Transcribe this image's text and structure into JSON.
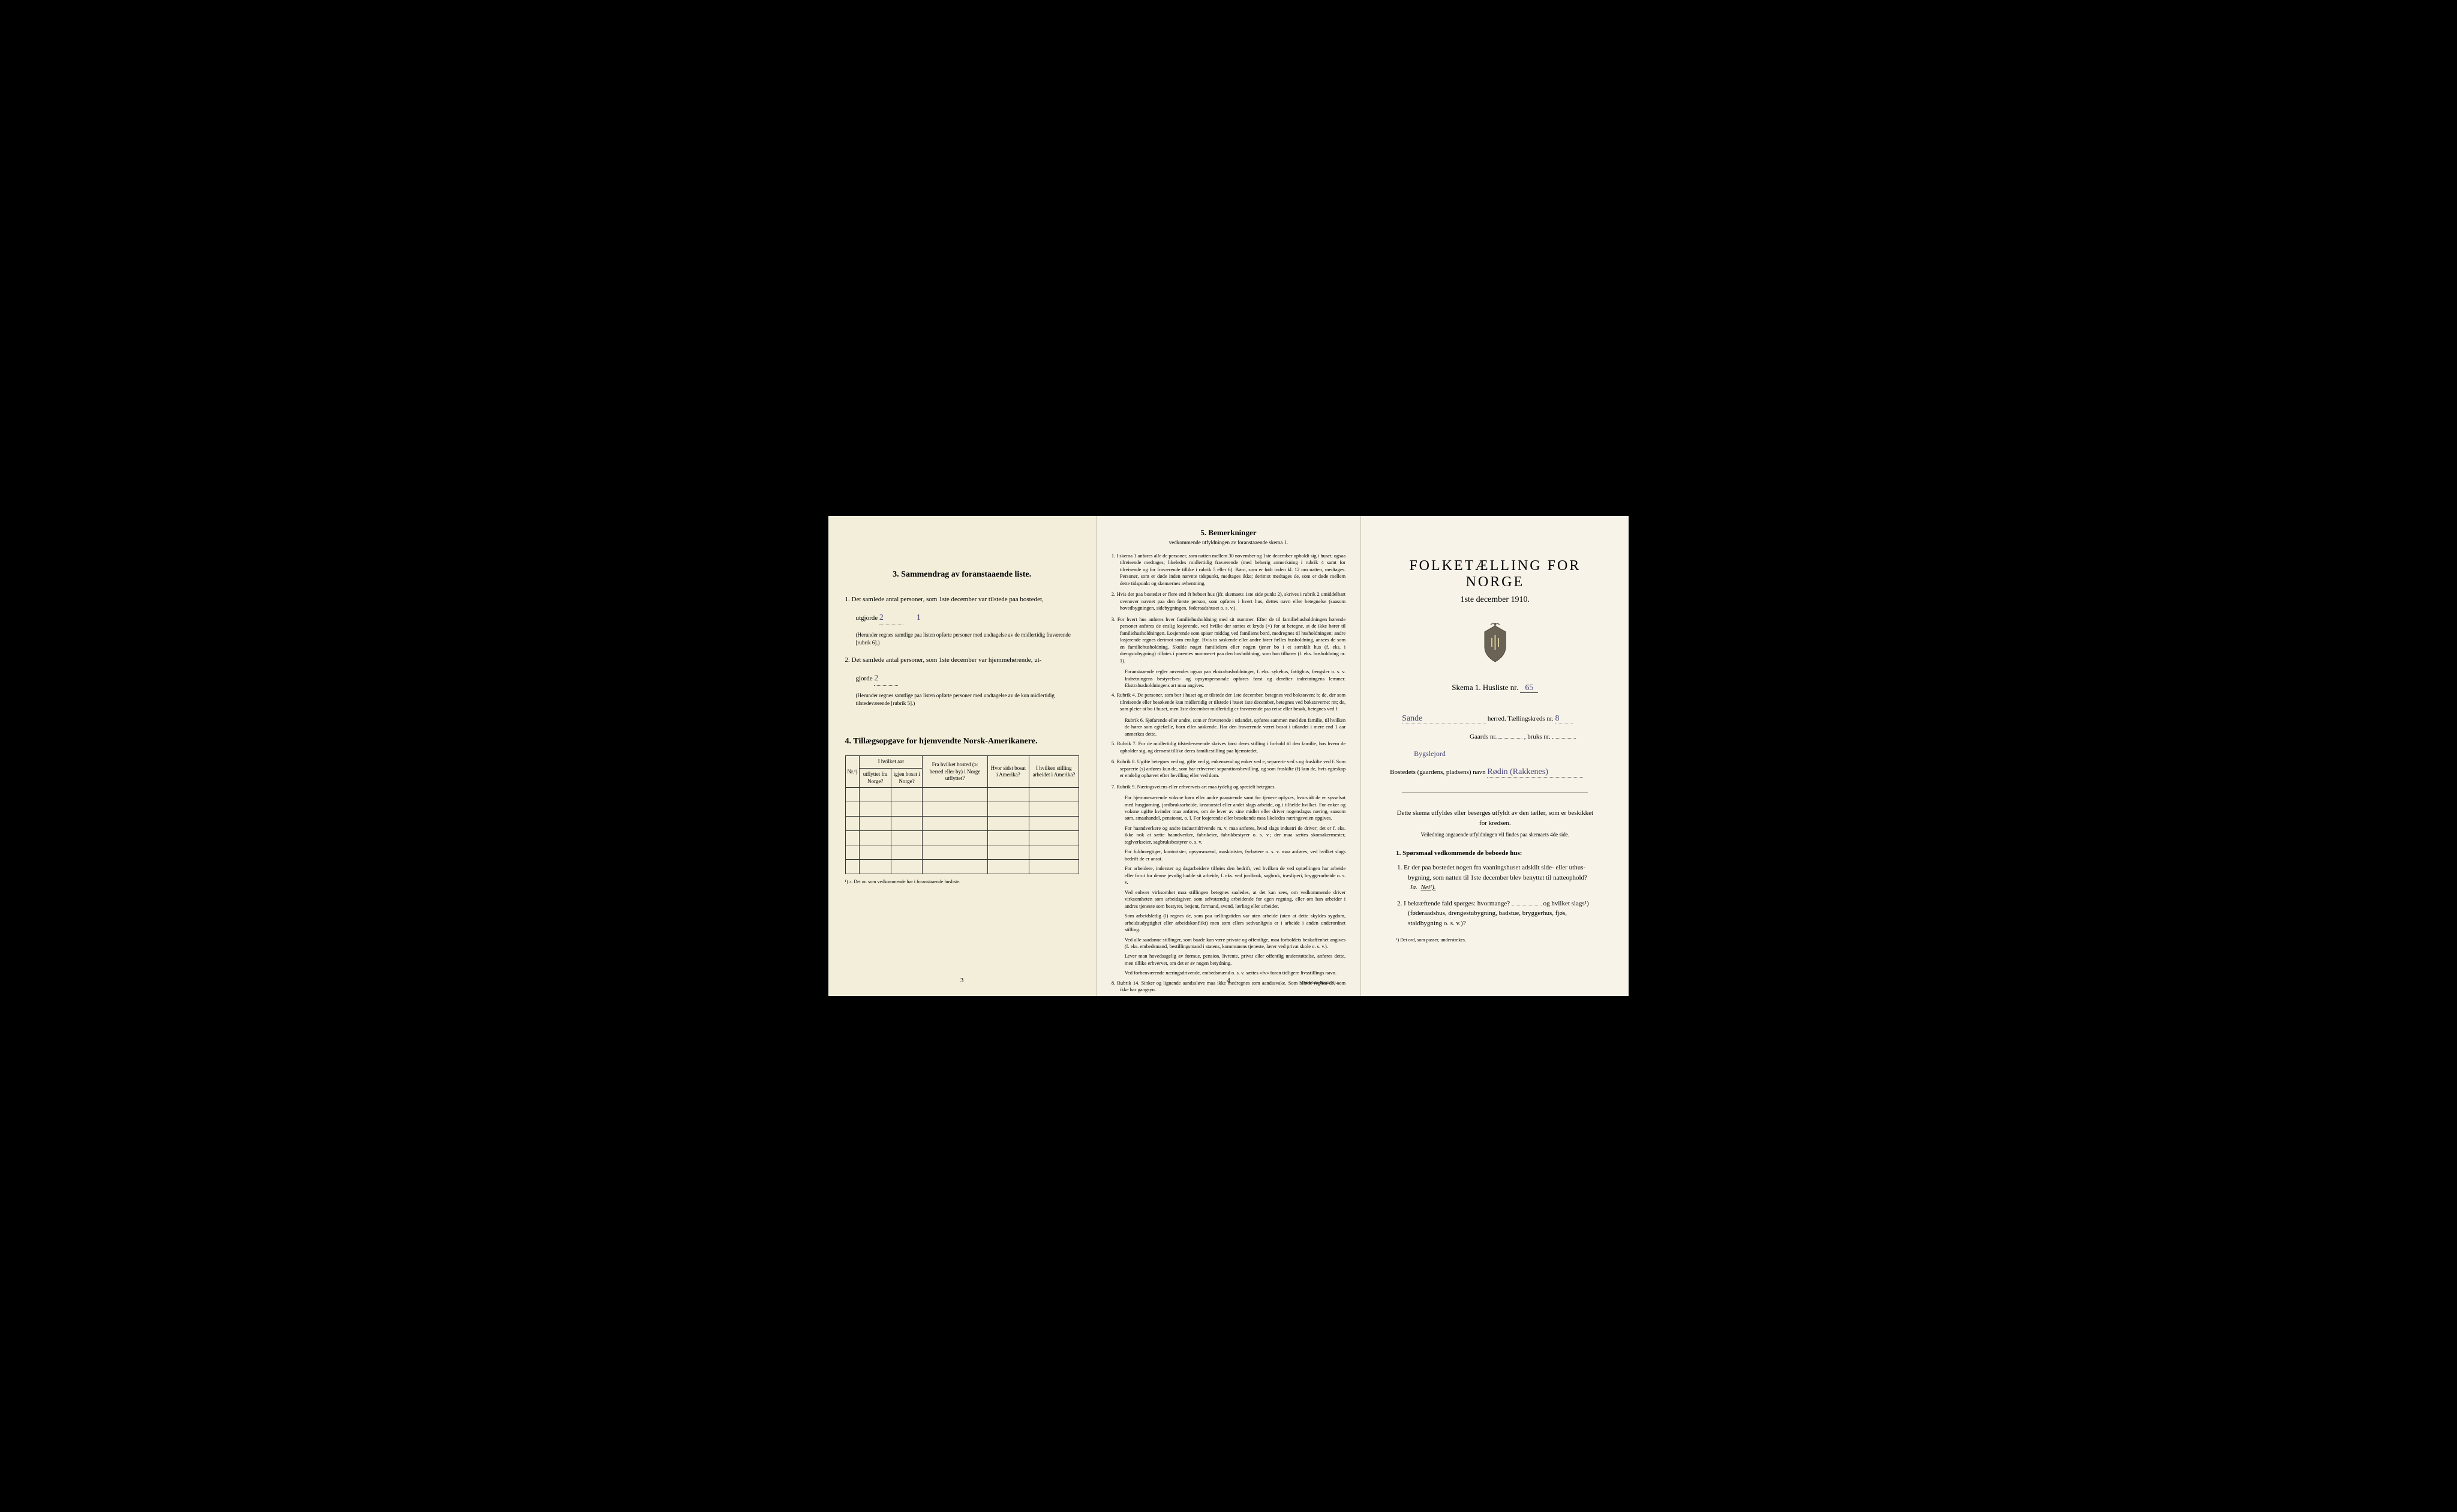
{
  "page_left": {
    "section3": {
      "title": "3. Sammendrag av foranstaaende liste.",
      "item1_prefix": "1.",
      "item1_text": "Det samlede antal personer, som 1ste december var tilstede paa bostedet,",
      "item1_line2": "utgjorde",
      "item1_value1": "2",
      "item1_value2": "1",
      "item1_note": "(Herunder regnes samtlige paa listen opførte personer med undtagelse av de midlertidig fraværende [rubrik 6].)",
      "item2_prefix": "2.",
      "item2_text": "Det samlede antal personer, som 1ste december var hjemmehørende, ut-",
      "item2_line2": "gjorde",
      "item2_value1": "2",
      "item2_note": "(Herunder regnes samtlige paa listen opførte personer med undtagelse av de kun midlertidig tilstedeværende [rubrik 5].)"
    },
    "section4": {
      "title": "4. Tillægsopgave for hjemvendte Norsk-Amerikanere.",
      "col_nr": "Nr.¹)",
      "col_group1": "I hvilket aar",
      "col_utflyttet": "utflyttet fra Norge?",
      "col_igjenbosat": "igjen bosat i Norge?",
      "col_fra_bosted": "Fra hvilket bosted (ɔ: herred eller by) i Norge utflyttet?",
      "col_hvor_sidst": "Hvor sidst bosat i Amerika?",
      "col_stilling": "I hvilken stilling arbeidet i Amerika?",
      "footnote": "¹) ɔ: Det nr. som vedkommende har i foranstaaende husliste.",
      "empty_rows": 6
    },
    "page_number": "3"
  },
  "page_middle": {
    "title": "5. Bemerkninger",
    "subtitle": "vedkommende utfyldningen av foranstaaende skema 1.",
    "remarks": [
      "1. I skema 1 anføres alle de personer, som natten mellem 30 november og 1ste december opholdt sig i huset; ogsaa tilreisende medtages; likeledes midlertidig fraværende (med behørig anmerkning i rubrik 4 samt for tilreisende og for fraværende tillike i rubrik 5 eller 6). Børn, som er født inden kl. 12 om natten, medtages. Personer, som er døde inden nævnte tidspunkt, medtages ikke; derimot medtages de, som er døde mellem dette tidspunkt og skemærnes avhentning.",
      "2. Hvis der paa bostedet er flere end ét beboet hus (jfr. skemaets 1ste side punkt 2), skrives i rubrik 2 umiddelbart ovenover navnet paa den første person, som opføres i hvert hus, dettes navn eller betegnelse (saasom hovedbygningen, sidebygningen, føderaadshuset o. s. v.).",
      "3. For hvert hus anføres hver familiehusholdning med sit nummer. Efter de til familiehusholdningen hørende personer anføres de enslig losjerende, ved hvilke der sættes et kryds (×) for at betegne, at de ikke hører til familiehusholdningen. Losjerende som spiser middag ved familiens bord, medregnes til husholdningen; andre losjerende regnes derimot som enslige. Hvis to søskende eller andre fører fælles husholdning, ansees de som en familiehusholdning. Skulde noget familielem eller nogen tjener bo i et særskilt hus (f. eks. i drengstubygning) tilføies i parentes nummeret paa den husholdning, som han tilhører (f. eks. husholdning nr. 1).",
      "4. Rubrik 4. De personer, som bor i huset og er tilstede der 1ste december, betegnes ved bokstaven: b; de, der som tilreisende eller besøkende kun midlertidig er tilstede i huset 1ste december, betegnes ved bokstaverne: mt; de, som pleier at bo i huset, men 1ste december midlertidig er fraværende paa reise eller besøk, betegnes ved f.",
      "5. Rubrik 7. For de midlertidig tilstedeværende skrives først deres stilling i forhold til den familie, hos hvem de opholder sig, og dernæst tillike deres familiestilling paa hjemstedet.",
      "6. Rubrik 8. Ugifte betegnes ved ug, gifte ved g, enkemænd og enker ved e, separerte ved s og fraskilte ved f. Som separerte (s) anføres kun de, som har erhvervet separationsbevilling, og som fraskilte (f) kun de, hvis egteskap er endelig ophævet efter bevilling eller ved dom.",
      "7. Rubrik 9. Næringsveiens eller erhvervets art maa tydelig og specielt betegnes.",
      "8. Rubrik 14. Sinker og lignende aandssløve maa ikke medregnes som aandssvake. Som blinde regnes de, som ikke har gangsyn."
    ],
    "sub_remarks": [
      "Foranstaaende regler anvendes ogsaa paa ekstrahusholdninger, f. eks. sykehus, fattighus, fængsler o. s. v. Indretningens bestyrelses- og opsynspersonale opføres først og derefter indretningens lemmer. Ekstrahusholdningens art maa angives.",
      "Rubrik 6. Sjøfarende eller andre, som er fraværende i utlandet, opføres sammen med den familie, til hvilken de hører som egtefælle, barn eller søskende. Har den fraværende været bosat i utlandet i mere end 1 aar anmerkes dette.",
      "For hjemmeværende voksne børn eller andre paarørende samt for tjenere oplyses, hvorvidt de er sysselsat med husgjørning, jordbruksarbeide, kreaturstel eller andet slags arbeide, og i tilfælde hvilket. For enker og voksne ugifte kvinder maa anføres, om de lever av sine midler eller driver nogenslagss næring, saasom søm, smaahandel, pensionat, o. l. For losjerende eller besøkende maa likeledes næringsveien opgives.",
      "For haandverkere og andre industridrivende m. v. maa anføres, hvad slags industri de driver; det er f. eks. ikke nok at sætte haandverker, fabrikeier, fabrikbestyrer o. s. v.; der maa sættes skomakermester, teglverkseier, sagbruksbestyrer o. s. v.",
      "For fuldmægtiger, kontorister, opsynsmænd, maskinister, fyrbøtere o. s. v. maa anføres, ved hvilket slags bedrift de er ansat.",
      "For arbeidere, inderster og dagarbeidere tilføies den bedrift, ved hvilken de ved optællingen har arbeide eller forut for denne jevnlig hadde sit arbeide, f. eks. ved jordbruk, sagbruk, træsliperi, bryggerarbeide o. s. v.",
      "Ved enhver virksomhet maa stillingen betegnes saaledes, at det kan sees, om vedkommende driver virksomheten som arbeidsgiver, som selvstændig arbeidende for egen regning, eller om han arbeider i andres tjeneste som bestyrer, betjent, formand, svend, lærling eller arbeider.",
      "Som arbeidsledig (l) regnes de, som paa tællingstiden var uten arbeide (uten at dette skyldes sygdom, arbeidsudygtighet eller arbeidskonflikt) men som ellers sedvanligvis er i arbeide i anden underordnet stilling.",
      "Ved alle saadanne stillinger, som baade kan være private og offentlige, maa forholdets beskaffenhet angives (f. eks. embedsmand, bestillingsmand i statens, kommunens tjeneste, lærer ved privat skole o. s. v.).",
      "Lever man hovedsagelig av formue, pension, livrente, privat eller offentlig understøttelse, anføres dette, men tillike erhvervet, om det er av nogen betydning.",
      "Ved forhenværende næringsdrivende, embedsmænd o. s. v. sættes «fv» foran tidligere livsstillings navn."
    ],
    "page_number": "4",
    "printer": "Steen'ske Bogtr. Kr.a."
  },
  "page_right": {
    "main_title": "FOLKETÆLLING FOR NORGE",
    "main_date": "1ste december 1910.",
    "skema_label": "Skema 1. Husliste nr.",
    "skema_nr": "65",
    "herred_value": "Sande",
    "herred_label": "herred. Tællingskreds nr.",
    "kreds_nr": "8",
    "gaards_label": "Gaards nr.",
    "bruks_label": ", bruks nr.",
    "bosted_type": "Bygslejord",
    "bosted_label": "Bostedets (gaardens, pladsens) navn",
    "bosted_name": "Rødin (Rakkenes)",
    "instruction": "Dette skema utfyldes eller besørges utfyldt av den tæller, som er beskikket for kredsen.",
    "instruction_small": "Veiledning angaaende utfyldningen vil findes paa skemaets 4de side.",
    "q_header": "1. Spørsmaal vedkommende de beboede hus:",
    "q1": "1. Er der paa bostedet nogen fra vaaningshuset adskilt side- eller uthus-bygning, som natten til 1ste december blev benyttet til natteophold?",
    "q1_ja": "Ja.",
    "q1_nei": "Nei¹).",
    "q2": "2. I bekræftende fald spørges: hvormange?",
    "q2_suffix": "og hvilket slags¹) (føderaadshus, drengestubygning, badstue, bryggerhus, fjøs, staldbygning o. s. v.)?",
    "footnote": "¹) Det ord, som passer, understrekes."
  }
}
